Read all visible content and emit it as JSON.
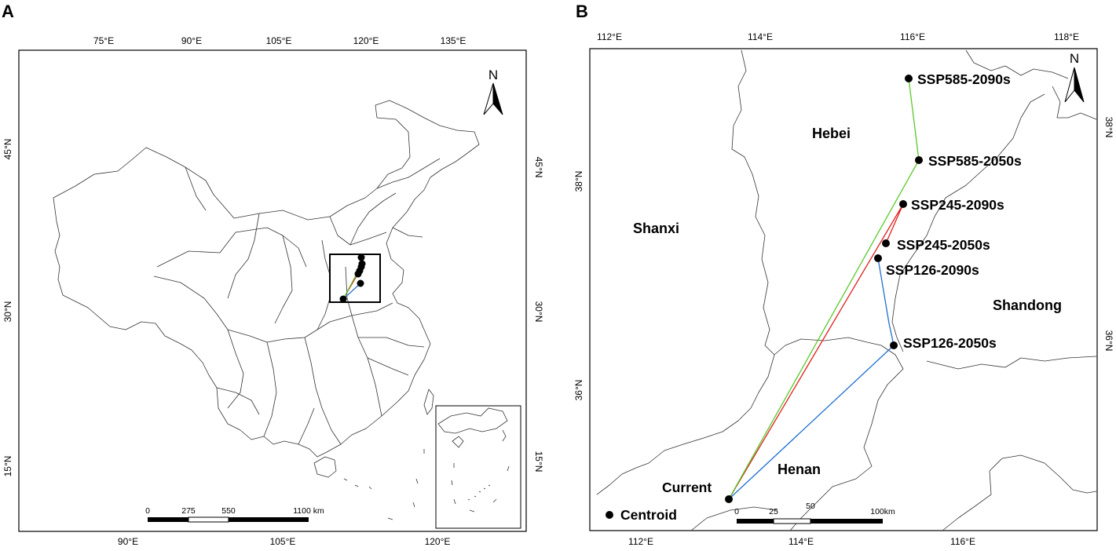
{
  "panels": {
    "a_label": "A",
    "b_label": "B"
  },
  "panel_a": {
    "top_ticks": [
      "75°E",
      "90°E",
      "105°E",
      "120°E",
      "135°E"
    ],
    "bottom_ticks": [
      "90°E",
      "105°E",
      "120°E"
    ],
    "left_ticks": [
      "45°N",
      "30°N",
      "15°N"
    ],
    "right_ticks": [
      "45°N",
      "30°N",
      "15°N"
    ],
    "north": "N",
    "scalebar": [
      "0",
      "275",
      "550",
      "1100 km"
    ]
  },
  "panel_b": {
    "top_ticks": [
      "112°E",
      "114°E",
      "116°E",
      "118°E"
    ],
    "bottom_ticks": [
      "112°E",
      "114°E",
      "116°E"
    ],
    "left_ticks": [
      "38°N",
      "36°N"
    ],
    "right_ticks": [
      "38°N",
      "36°N"
    ],
    "north": "N",
    "scalebar": [
      "0",
      "25",
      "50",
      "100km"
    ],
    "provinces": [
      "Hebei",
      "Shanxi",
      "Shandong",
      "Henan"
    ],
    "points": {
      "current": "Current",
      "centroid": "Centroid",
      "ssp126_2050": "SSP126-2050s",
      "ssp126_2090": "SSP126-2090s",
      "ssp245_2050": "SSP245-2050s",
      "ssp245_2090": "SSP245-2090s",
      "ssp585_2050": "SSP585-2050s",
      "ssp585_2090": "SSP585-2090s"
    },
    "line_colors": {
      "ssp126": "#1f6fd1",
      "ssp245": "#e02020",
      "ssp585": "#59c92a"
    }
  }
}
